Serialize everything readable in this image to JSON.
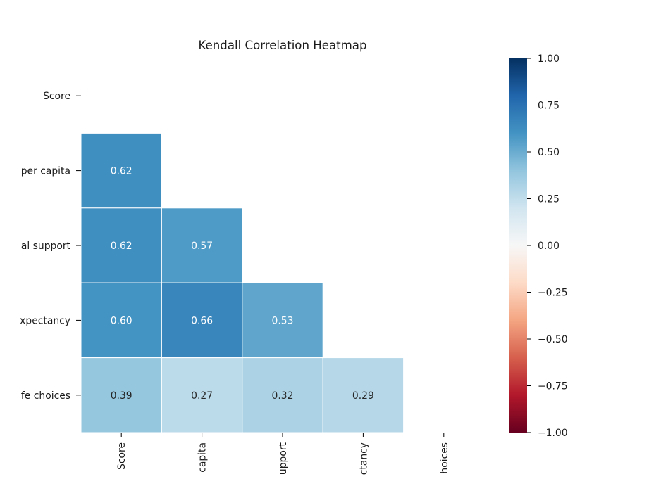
{
  "chart_data": {
    "type": "heatmap",
    "title": "Kendall Correlation Heatmap",
    "row_labels": [
      "Score",
      "per capita",
      "al support",
      "xpectancy",
      "fe choices"
    ],
    "col_labels": [
      "Score",
      "capita",
      "upport",
      "ctancy",
      "hoices"
    ],
    "mask": "upper-triangle-including-diagonal",
    "cells": [
      {
        "row": 1,
        "col": 0,
        "value": 0.62
      },
      {
        "row": 2,
        "col": 0,
        "value": 0.62
      },
      {
        "row": 2,
        "col": 1,
        "value": 0.57
      },
      {
        "row": 3,
        "col": 0,
        "value": 0.6
      },
      {
        "row": 3,
        "col": 1,
        "value": 0.66
      },
      {
        "row": 3,
        "col": 2,
        "value": 0.53
      },
      {
        "row": 4,
        "col": 0,
        "value": 0.39
      },
      {
        "row": 4,
        "col": 1,
        "value": 0.27
      },
      {
        "row": 4,
        "col": 2,
        "value": 0.32
      },
      {
        "row": 4,
        "col": 3,
        "value": 0.29
      }
    ],
    "value_labels": [
      "0.62",
      "0.62",
      "0.57",
      "0.60",
      "0.66",
      "0.53",
      "0.39",
      "0.27",
      "0.32",
      "0.29"
    ],
    "colorbar": {
      "colormap": "RdBu",
      "range": [
        -1.0,
        1.0
      ],
      "ticks": [
        1.0,
        0.75,
        0.5,
        0.25,
        0.0,
        -0.25,
        -0.5,
        -0.75,
        -1.0
      ],
      "tick_labels": [
        "1.00",
        "0.75",
        "0.50",
        "0.25",
        "0.00",
        "−0.25",
        "−0.50",
        "−0.75",
        "−1.00"
      ]
    }
  }
}
